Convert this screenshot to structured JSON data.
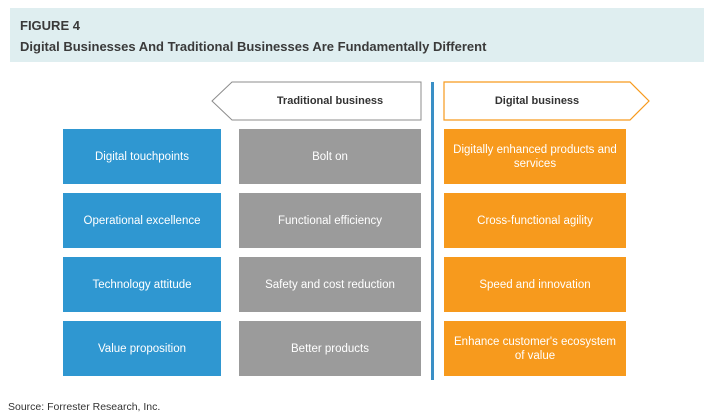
{
  "figure_label": "FIGURE 4",
  "figure_title": "Digital Businesses And Traditional Businesses Are Fundamentally Different",
  "headers": {
    "traditional": "Traditional business",
    "digital": "Digital business"
  },
  "colors": {
    "header_bg": "#dfeef0",
    "dimension_box": "#2f97d1",
    "traditional_box": "#9b9b9b",
    "digital_box": "#f79a1d",
    "digital_arrow_outline": "#f79a1d",
    "divider": "#3a8fc6"
  },
  "rows": [
    {
      "dimension": "Digital touchpoints",
      "traditional": "Bolt on",
      "digital": "Digitally enhanced products and services"
    },
    {
      "dimension": "Operational excellence",
      "traditional": "Functional efficiency",
      "digital": "Cross-functional agility"
    },
    {
      "dimension": "Technology attitude",
      "traditional": "Safety and cost reduction",
      "digital": "Speed and innovation"
    },
    {
      "dimension": "Value proposition",
      "traditional": "Better products",
      "digital": "Enhance customer's ecosystem of value"
    }
  ],
  "source": "Source: Forrester Research, Inc."
}
